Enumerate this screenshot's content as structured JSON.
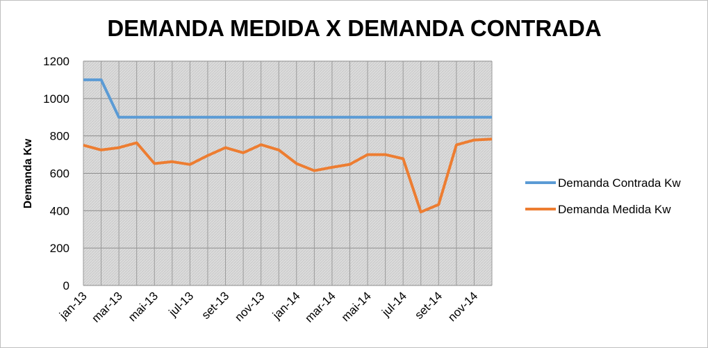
{
  "chart_data": {
    "type": "line",
    "title": "DEMANDA MEDIDA X DEMANDA CONTRADA",
    "xlabel": "",
    "ylabel": "Demanda  Kw",
    "ylim": [
      0,
      1200
    ],
    "yticks": [
      0,
      200,
      400,
      600,
      800,
      1000,
      1200
    ],
    "categories": [
      "jan-13",
      "fev-13",
      "mar-13",
      "abr-13",
      "mai-13",
      "jun-13",
      "jul-13",
      "ago-13",
      "set-13",
      "out-13",
      "nov-13",
      "dez-13",
      "jan-14",
      "fev-14",
      "mar-14",
      "abr-14",
      "mai-14",
      "jun-14",
      "jul-14",
      "ago-14",
      "set-14",
      "out-14",
      "nov-14",
      "dez-14"
    ],
    "xtick_labels": [
      "jan-13",
      "mar-13",
      "mai-13",
      "jul-13",
      "set-13",
      "nov-13",
      "jan-14",
      "mar-14",
      "mai-14",
      "jul-14",
      "set-14",
      "nov-14"
    ],
    "grid": true,
    "legend_position": "right",
    "series": [
      {
        "name": "Demanda Contrada Kw",
        "color": "#5b9bd5",
        "values": [
          1100,
          1100,
          900,
          900,
          900,
          900,
          900,
          900,
          900,
          900,
          900,
          900,
          900,
          900,
          900,
          900,
          900,
          900,
          900,
          900,
          900,
          900,
          900,
          900
        ]
      },
      {
        "name": "Demanda Medida Kw",
        "color": "#ed7d31",
        "values": [
          750,
          725,
          737,
          763,
          652,
          662,
          647,
          695,
          737,
          710,
          753,
          725,
          652,
          614,
          632,
          648,
          700,
          700,
          678,
          393,
          433,
          752,
          778,
          783
        ]
      }
    ]
  }
}
